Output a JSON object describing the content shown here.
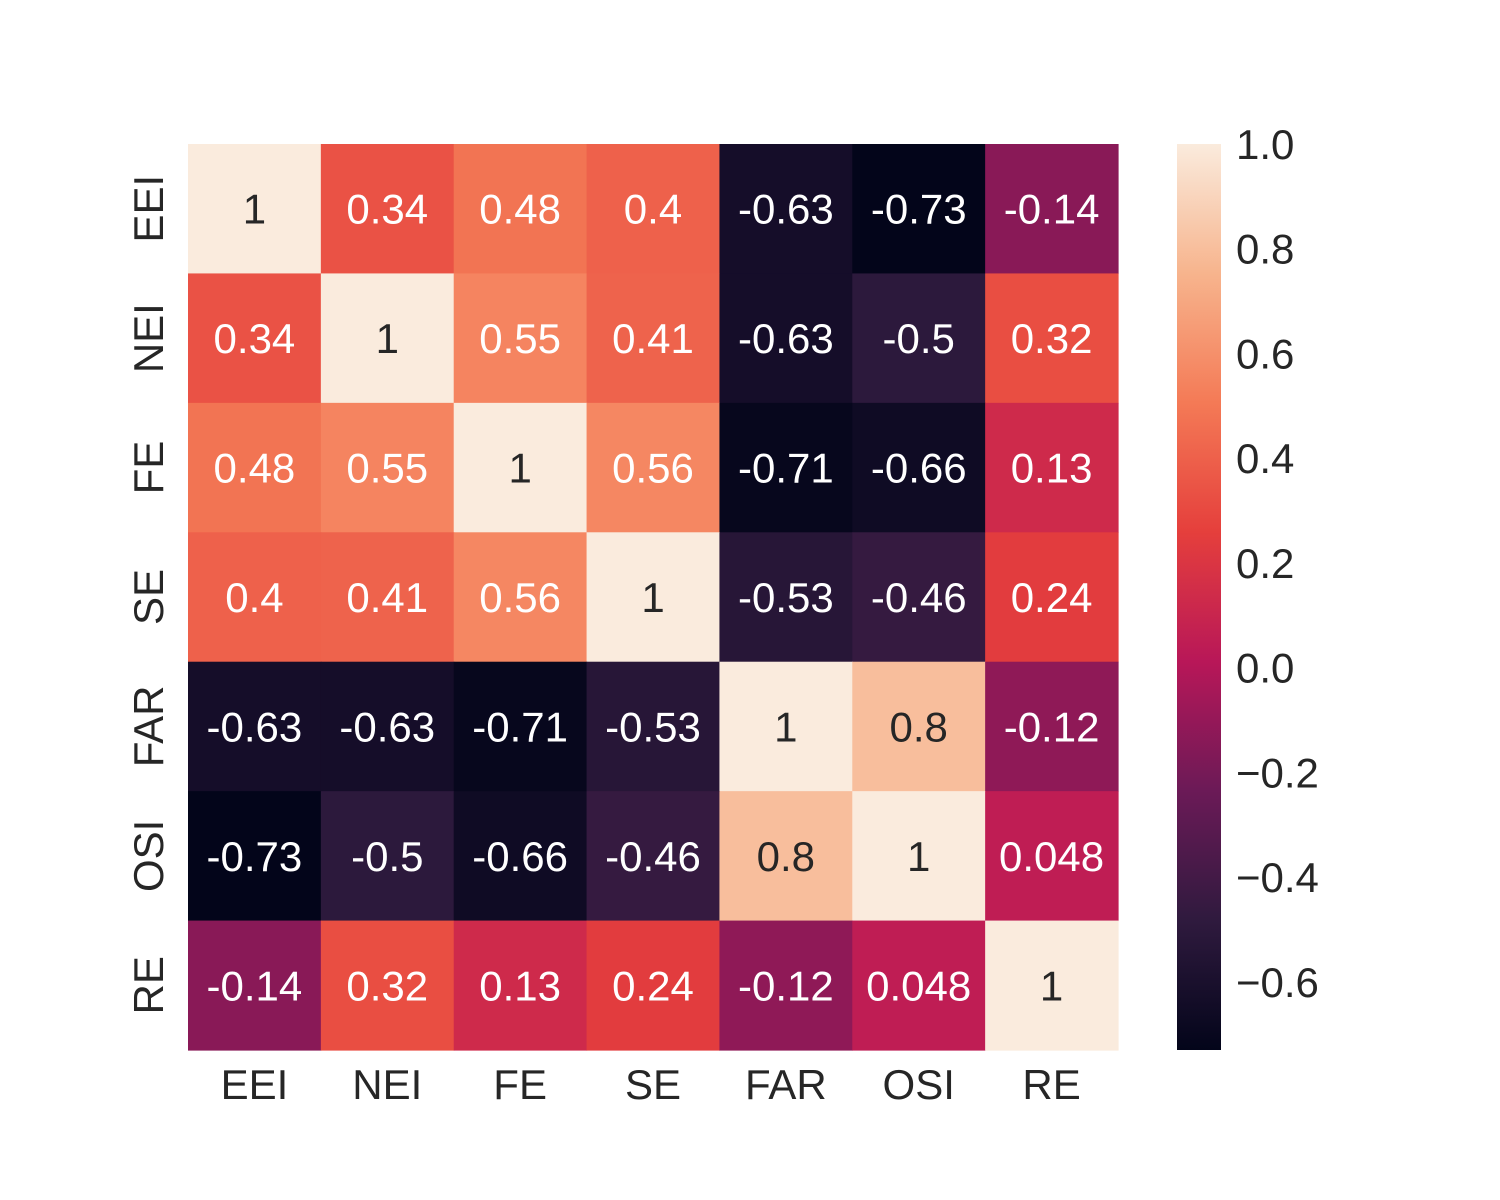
{
  "chart_data": {
    "type": "heatmap",
    "title": "",
    "xlabel": "",
    "ylabel": "",
    "categories": [
      "EEI",
      "NEI",
      "FE",
      "SE",
      "FAR",
      "OSI",
      "RE"
    ],
    "x_tick_labels": [
      "EEI",
      "NEI",
      "FE",
      "SE",
      "FAR",
      "OSI",
      "RE"
    ],
    "y_tick_labels": [
      "EEI",
      "NEI",
      "FE",
      "SE",
      "FAR",
      "OSI",
      "RE"
    ],
    "values": [
      [
        1,
        0.34,
        0.48,
        0.4,
        -0.63,
        -0.73,
        -0.14
      ],
      [
        0.34,
        1,
        0.55,
        0.41,
        -0.63,
        -0.5,
        0.32
      ],
      [
        0.48,
        0.55,
        1,
        0.56,
        -0.71,
        -0.66,
        0.13
      ],
      [
        0.4,
        0.41,
        0.56,
        1,
        -0.53,
        -0.46,
        0.24
      ],
      [
        -0.63,
        -0.63,
        -0.71,
        -0.53,
        1,
        0.8,
        -0.12
      ],
      [
        -0.73,
        -0.5,
        -0.66,
        -0.46,
        0.8,
        1,
        0.048
      ],
      [
        -0.14,
        0.32,
        0.13,
        0.24,
        -0.12,
        0.048,
        1
      ]
    ],
    "annotations": [
      [
        "1",
        "0.34",
        "0.48",
        "0.4",
        "-0.63",
        "-0.73",
        "-0.14"
      ],
      [
        "0.34",
        "1",
        "0.55",
        "0.41",
        "-0.63",
        "-0.5",
        "0.32"
      ],
      [
        "0.48",
        "0.55",
        "1",
        "0.56",
        "-0.71",
        "-0.66",
        "0.13"
      ],
      [
        "0.4",
        "0.41",
        "0.56",
        "1",
        "-0.53",
        "-0.46",
        "0.24"
      ],
      [
        "-0.63",
        "-0.63",
        "-0.71",
        "-0.53",
        "1",
        "0.8",
        "-0.12"
      ],
      [
        "-0.73",
        "-0.5",
        "-0.66",
        "-0.46",
        "0.8",
        "1",
        "0.048"
      ],
      [
        "-0.14",
        "0.32",
        "0.13",
        "0.24",
        "-0.12",
        "0.048",
        "1"
      ]
    ],
    "colorbar": {
      "vmin": -0.73,
      "vmax": 1.0,
      "ticks": [
        1.0,
        0.8,
        0.6,
        0.4,
        0.2,
        0.0,
        -0.2,
        -0.4,
        -0.6
      ],
      "tick_labels": [
        "1.0",
        "0.8",
        "0.6",
        "0.4",
        "0.2",
        "0.0",
        "−0.2",
        "−0.4",
        "−0.6"
      ],
      "colormap": "rocket",
      "colormap_stops": [
        "#03051a",
        "#2f1a3e",
        "#6b1a57",
        "#b81758",
        "#e53f3c",
        "#f47a56",
        "#f7b48d",
        "#faebdd"
      ]
    },
    "grid": false,
    "legend": "right"
  }
}
